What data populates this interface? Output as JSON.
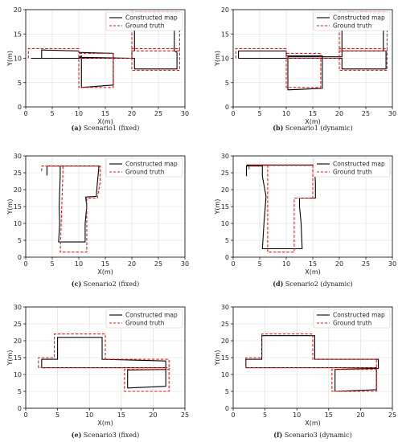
{
  "figure": {
    "legend": {
      "constructed": "Constructed map",
      "truth": "Ground truth"
    },
    "colors": {
      "constructed": "#000000",
      "truth": "#e8161b",
      "grid": "#d9d9d9"
    }
  },
  "chart_data": [
    {
      "type": "line",
      "caption_letter": "(a)",
      "caption_text": "Scenario1 (fixed)",
      "xlabel": "X(m)",
      "ylabel": "Y(m)",
      "xlim": [
        0,
        30
      ],
      "ylim": [
        0,
        20
      ],
      "xticks": [
        0,
        5,
        10,
        15,
        20,
        25,
        30
      ],
      "yticks": [
        0,
        5,
        10,
        15,
        20
      ],
      "grid": true,
      "legend_position": "top-right",
      "series": [
        {
          "name": "Constructed map",
          "style": "solid",
          "x": [
            1,
            3,
            3,
            10,
            10,
            16.5,
            16.5,
            10.5,
            10.5,
            10,
            20,
            20,
            20.5,
            20.5,
            28,
            28,
            28.5,
            28.5,
            20.5,
            20.5,
            3
          ],
          "y": [
            10,
            10,
            11.7,
            11.5,
            11.2,
            11,
            4.5,
            4,
            10.5,
            10.2,
            10,
            11.5,
            11.5,
            18.5,
            18,
            11.5,
            11.2,
            7.8,
            7.8,
            10,
            10
          ]
        },
        {
          "name": "Ground truth",
          "style": "dashed",
          "x": [
            0.5,
            0.5,
            10,
            10,
            16.5,
            16.5,
            10,
            10,
            20,
            20,
            29,
            29,
            20,
            20,
            29,
            29,
            20,
            20
          ],
          "y": [
            10,
            12,
            12,
            4,
            4,
            11,
            11,
            10,
            10,
            19.5,
            19.5,
            11.5,
            11.5,
            12,
            12,
            7.5,
            7.5,
            10
          ]
        }
      ]
    },
    {
      "type": "line",
      "caption_letter": "(b)",
      "caption_text": "Scenario1 (dynamic)",
      "xlabel": "X(m)",
      "ylabel": "Y(m)",
      "xlim": [
        0,
        30
      ],
      "ylim": [
        0,
        20
      ],
      "xticks": [
        0,
        5,
        10,
        15,
        20,
        25,
        30
      ],
      "yticks": [
        0,
        5,
        10,
        15,
        20
      ],
      "grid": true,
      "legend_position": "top-right",
      "series": [
        {
          "name": "Constructed map",
          "style": "solid",
          "x": [
            1,
            1,
            10,
            10,
            16.8,
            16.8,
            10.3,
            10.3,
            20.5,
            20.5,
            28.3,
            28.3,
            20.5,
            20.5,
            28.8,
            28.8,
            20.5,
            20.5,
            1
          ],
          "y": [
            10,
            11.5,
            11.5,
            10.5,
            10.5,
            3.8,
            3.5,
            10.3,
            10.3,
            11.5,
            11.5,
            18.8,
            18.5,
            11.5,
            11.5,
            7.8,
            7.8,
            10,
            10
          ]
        },
        {
          "name": "Ground truth",
          "style": "dashed",
          "x": [
            0.5,
            0.5,
            10,
            10,
            16.5,
            16.5,
            10,
            10,
            20,
            20,
            29,
            29,
            20,
            20,
            29,
            29,
            20,
            20
          ],
          "y": [
            10,
            12,
            12,
            4,
            4,
            11,
            11,
            10,
            10,
            19.5,
            19.5,
            11.5,
            11.5,
            12,
            12,
            7.5,
            7.5,
            10
          ]
        }
      ]
    },
    {
      "type": "line",
      "caption_letter": "(c)",
      "caption_text": "Scenario2 (fixed)",
      "xlabel": "X(m)",
      "ylabel": "Y(m)",
      "xlim": [
        0,
        30
      ],
      "ylim": [
        0,
        30
      ],
      "xticks": [
        0,
        5,
        10,
        15,
        20,
        25,
        30
      ],
      "yticks": [
        0,
        5,
        10,
        15,
        20,
        25,
        30
      ],
      "grid": true,
      "legend_position": "top-right",
      "series": [
        {
          "name": "Constructed map",
          "style": "solid",
          "x": [
            4,
            4,
            6.5,
            6.5,
            6.3,
            6.4,
            6.2,
            11.2,
            11.2,
            11.5,
            11.3,
            13.3,
            13.5,
            13.8,
            4
          ],
          "y": [
            24.2,
            27,
            27,
            24,
            15,
            10,
            4.5,
            4.5,
            10,
            15,
            17.8,
            18,
            22,
            27,
            27
          ]
        },
        {
          "name": "Ground truth",
          "style": "dashed",
          "x": [
            3,
            3,
            7,
            7,
            6.5,
            11.5,
            11.5,
            13.5,
            14,
            14,
            3
          ],
          "y": [
            25.5,
            27,
            27,
            24.5,
            1.5,
            1.5,
            17.5,
            17.5,
            22,
            27,
            27
          ]
        }
      ]
    },
    {
      "type": "line",
      "caption_letter": "(d)",
      "caption_text": "Scenario2 (dynamic)",
      "xlabel": "X(m)",
      "ylabel": "Y(m)",
      "xlim": [
        0,
        30
      ],
      "ylim": [
        0,
        30
      ],
      "xticks": [
        0,
        5,
        10,
        15,
        20,
        25,
        30
      ],
      "yticks": [
        0,
        5,
        10,
        15,
        20,
        25,
        30
      ],
      "grid": true,
      "legend_position": "top-right",
      "series": [
        {
          "name": "Constructed map",
          "style": "solid",
          "x": [
            2.5,
            2.5,
            5.5,
            5.5,
            6.2,
            5.8,
            5.5,
            13,
            12.8,
            12.5,
            12.5,
            15.5,
            15.5,
            15.3,
            2.5
          ],
          "y": [
            24,
            27,
            27,
            24,
            18,
            10,
            2.5,
            2.5,
            10,
            15,
            17.5,
            17.5,
            22,
            27.3,
            27.3
          ]
        },
        {
          "name": "Ground truth",
          "style": "dashed",
          "x": [
            3,
            3,
            6.5,
            6.5,
            6.5,
            11.5,
            11.5,
            15,
            15,
            15,
            3
          ],
          "y": [
            26,
            27.2,
            27.2,
            25,
            1.5,
            1.5,
            17.5,
            17.5,
            22,
            27.2,
            27.2
          ]
        }
      ]
    },
    {
      "type": "line",
      "caption_letter": "(e)",
      "caption_text": "Scenario3 (fixed)",
      "xlabel": "X(m)",
      "ylabel": "Y(m)",
      "xlim": [
        0,
        25
      ],
      "ylim": [
        0,
        30
      ],
      "xticks": [
        0,
        5,
        10,
        15,
        20,
        25
      ],
      "yticks": [
        0,
        5,
        10,
        15,
        20,
        25,
        30
      ],
      "grid": true,
      "legend_position": "top-right",
      "series": [
        {
          "name": "Constructed map",
          "style": "solid",
          "x": [
            2.5,
            2.5,
            5,
            5,
            12,
            12,
            22,
            22,
            16,
            16,
            22,
            22,
            2.5
          ],
          "y": [
            12,
            14.5,
            14.5,
            21,
            21,
            14.5,
            14,
            11.5,
            11.3,
            6,
            6.5,
            12,
            12
          ]
        },
        {
          "name": "Ground truth",
          "style": "dashed",
          "x": [
            2,
            2,
            4.5,
            4.5,
            12.5,
            12.5,
            22.5,
            22.5,
            15.5,
            15.5,
            22.5,
            22.5,
            2
          ],
          "y": [
            12,
            15,
            15,
            22,
            22,
            14.5,
            14.5,
            11.5,
            11.5,
            5,
            5,
            12,
            12
          ]
        }
      ]
    },
    {
      "type": "line",
      "caption_letter": "(f)",
      "caption_text": "Scenario3 (dynamic)",
      "xlabel": "X(m)",
      "ylabel": "Y(m)",
      "xlim": [
        0,
        25
      ],
      "ylim": [
        0,
        30
      ],
      "xticks": [
        0,
        5,
        10,
        15,
        20,
        25
      ],
      "yticks": [
        0,
        5,
        10,
        15,
        20,
        25,
        30
      ],
      "grid": true,
      "legend_position": "top-right",
      "series": [
        {
          "name": "Constructed map",
          "style": "solid",
          "x": [
            2,
            2,
            4.5,
            4.5,
            12.8,
            12.8,
            22.8,
            22.8,
            16,
            16,
            22.5,
            22.5,
            2
          ],
          "y": [
            12,
            14.5,
            14.5,
            21.5,
            21.5,
            14.5,
            14.5,
            11.8,
            11.5,
            5,
            5.5,
            12,
            12
          ]
        },
        {
          "name": "Ground truth",
          "style": "dashed",
          "x": [
            2,
            2,
            4.5,
            4.5,
            12.5,
            12.5,
            22.5,
            22.5,
            15.5,
            15.5,
            22.5,
            22.5,
            2
          ],
          "y": [
            12,
            15,
            15,
            22,
            22,
            14.5,
            14.5,
            11.5,
            11.5,
            5,
            5,
            12,
            12
          ]
        }
      ]
    }
  ]
}
